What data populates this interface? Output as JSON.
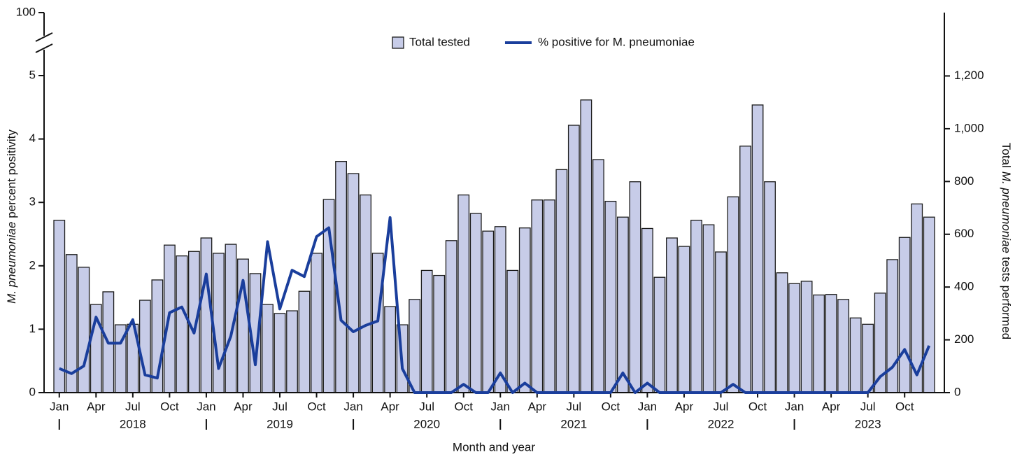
{
  "chart_data": {
    "type": "bar",
    "categories": [
      "Jan",
      null,
      null,
      "Apr",
      null,
      null,
      "Jul",
      null,
      null,
      "Oct",
      null,
      null,
      "Jan",
      null,
      null,
      "Apr",
      null,
      null,
      "Jul",
      null,
      null,
      "Oct",
      null,
      null,
      "Jan",
      null,
      null,
      "Apr",
      null,
      null,
      "Jul",
      null,
      null,
      "Oct",
      null,
      null,
      "Jan",
      null,
      null,
      "Apr",
      null,
      null,
      "Jul",
      null,
      null,
      "Oct",
      null,
      null,
      "Jan",
      null,
      null,
      "Apr",
      null,
      null,
      "Jul",
      null,
      null,
      "Oct",
      null,
      null,
      "Jan",
      null,
      null,
      "Apr",
      null,
      null,
      "Jul",
      null,
      null,
      "Oct",
      null,
      null
    ],
    "x_groups": [
      "2018",
      "2019",
      "2020",
      "2021",
      "2022",
      "2023"
    ],
    "x_label": "Month and year",
    "y_label": [
      {
        "text": "M. pneumoniae",
        "italic": true
      },
      {
        "text": "percent positivity",
        "italic": false
      }
    ],
    "y2_label": [
      {
        "text": "Total",
        "italic": false
      },
      {
        "text": "M. pneumoniae",
        "italic": true
      },
      {
        "text": "tests performed",
        "italic": false
      }
    ],
    "ylim": [
      0,
      100
    ],
    "yticks": [
      0,
      1,
      2,
      3,
      4,
      5,
      100
    ],
    "axis_break": true,
    "y2lim": [
      0,
      1440
    ],
    "y2ticks": [
      0,
      200,
      400,
      600,
      800,
      {
        "value": 1000,
        "label": "1,000"
      },
      {
        "value": 1200,
        "label": "1,200"
      }
    ],
    "legend": "top",
    "series": [
      {
        "name": "Total tested",
        "type": "bar",
        "axis": "y2",
        "color": "#c7cce8",
        "values": [
          653,
          523,
          475,
          334,
          382,
          257,
          259,
          350,
          427,
          559,
          518,
          535,
          586,
          528,
          562,
          506,
          451,
          334,
          300,
          310,
          384,
          528,
          732,
          876,
          830,
          749,
          528,
          326,
          257,
          353,
          463,
          444,
          576,
          749,
          679,
          612,
          629,
          463,
          624,
          730,
          730,
          845,
          1013,
          1109,
          883,
          725,
          665,
          799,
          622,
          437,
          586,
          554,
          653,
          636,
          533,
          742,
          934,
          1090,
          799,
          454,
          413,
          422,
          370,
          372,
          353,
          283,
          259,
          377,
          504,
          588,
          715,
          665
        ]
      },
      {
        "name": "% positive for M. pneumoniae",
        "type": "line",
        "axis": "y",
        "color": "#1a3e9c",
        "values": [
          0.38,
          0.3,
          0.42,
          1.19,
          0.78,
          0.78,
          1.15,
          0.28,
          0.23,
          1.26,
          1.35,
          0.94,
          1.87,
          0.38,
          0.89,
          1.77,
          0.44,
          2.38,
          1.32,
          1.93,
          1.83,
          2.46,
          2.6,
          1.14,
          0.96,
          1.06,
          1.13,
          2.76,
          0.38,
          0,
          0,
          0,
          0,
          0.13,
          0,
          0,
          0.31,
          0,
          0.15,
          0,
          0,
          0,
          0,
          0,
          0,
          0,
          0.31,
          0,
          0.15,
          0,
          0,
          0,
          0,
          0,
          0,
          0.13,
          0,
          0,
          0,
          0,
          0,
          0,
          0,
          0,
          0,
          0,
          0,
          0.25,
          0.4,
          0.68,
          0.28,
          0.74
        ]
      }
    ]
  }
}
